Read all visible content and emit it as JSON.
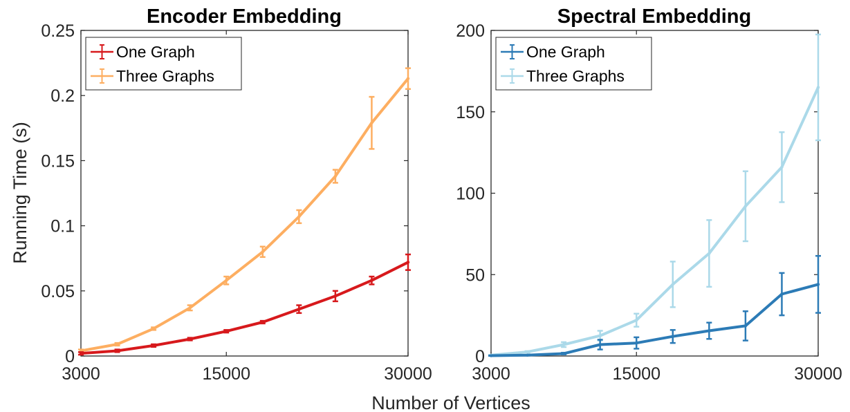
{
  "figure": {
    "shared_xlabel": "Number of Vertices",
    "shared_ylabel": "Running Time (s)"
  },
  "chart_data": [
    {
      "type": "line",
      "title": "Encoder Embedding",
      "xlabel": "Number of Vertices",
      "ylabel": "Running Time (s)",
      "xlim": [
        3000,
        30000
      ],
      "ylim": [
        0,
        0.25
      ],
      "xticks": [
        3000,
        15000,
        30000
      ],
      "xtick_labels": [
        "3000",
        "15000",
        "30000"
      ],
      "yticks": [
        0,
        0.05,
        0.1,
        0.15,
        0.2,
        0.25
      ],
      "ytick_labels": [
        "0",
        "0.05",
        "0.1",
        "0.15",
        "0.2",
        "0.25"
      ],
      "grid": false,
      "legend_position": "top-left",
      "x": [
        3000,
        6000,
        9000,
        12000,
        15000,
        18000,
        21000,
        24000,
        27000,
        30000
      ],
      "series": [
        {
          "name": "One Graph",
          "color": "#d7191c",
          "values": [
            0.002,
            0.004,
            0.008,
            0.013,
            0.019,
            0.026,
            0.036,
            0.046,
            0.058,
            0.072
          ],
          "errors": [
            0.001,
            0.001,
            0.001,
            0.001,
            0.001,
            0.001,
            0.003,
            0.004,
            0.003,
            0.006
          ]
        },
        {
          "name": "Three Graphs",
          "color": "#fdae61",
          "values": [
            0.004,
            0.009,
            0.021,
            0.037,
            0.058,
            0.08,
            0.107,
            0.138,
            0.179,
            0.213
          ],
          "errors": [
            0.001,
            0.001,
            0.001,
            0.002,
            0.003,
            0.004,
            0.005,
            0.005,
            0.02,
            0.008
          ]
        }
      ]
    },
    {
      "type": "line",
      "title": "Spectral Embedding",
      "xlabel": "Number of Vertices",
      "ylabel": "Running Time (s)",
      "xlim": [
        3000,
        30000
      ],
      "ylim": [
        0,
        200
      ],
      "xticks": [
        3000,
        15000,
        30000
      ],
      "xtick_labels": [
        "3000",
        "15000",
        "30000"
      ],
      "yticks": [
        0,
        50,
        100,
        150,
        200
      ],
      "ytick_labels": [
        "0",
        "50",
        "100",
        "150",
        "200"
      ],
      "grid": false,
      "legend_position": "top-left",
      "x": [
        3000,
        6000,
        9000,
        12000,
        15000,
        18000,
        21000,
        24000,
        27000,
        30000
      ],
      "series": [
        {
          "name": "One Graph",
          "color": "#2c7bb6",
          "values": [
            0.2,
            0.5,
            1.5,
            7,
            8,
            12,
            15.5,
            18.5,
            38,
            44
          ],
          "errors": [
            0.1,
            0.2,
            0.5,
            3,
            3.5,
            4,
            5,
            9,
            13,
            17.5
          ]
        },
        {
          "name": "Three Graphs",
          "color": "#abd9e9",
          "values": [
            0.5,
            2.5,
            7,
            12.5,
            22,
            44,
            63,
            92,
            116,
            165
          ],
          "errors": [
            0.2,
            0.5,
            1.5,
            3,
            4,
            14,
            20.5,
            21.5,
            21.5,
            32.5
          ]
        }
      ]
    }
  ]
}
